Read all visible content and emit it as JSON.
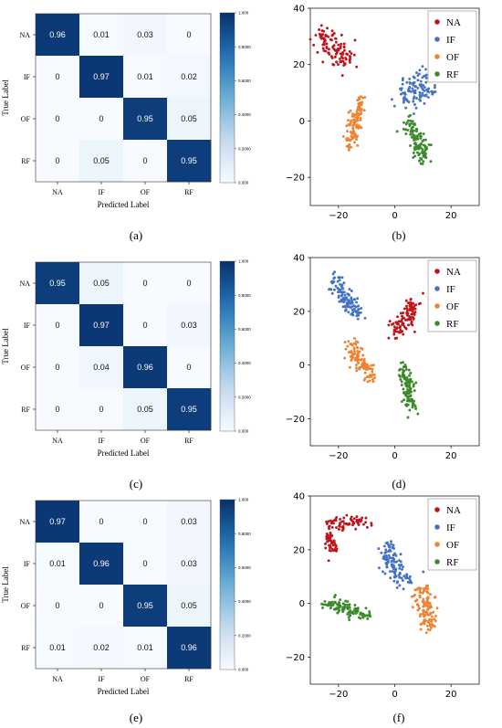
{
  "panels": [
    {
      "label": "(a)"
    },
    {
      "label": "(b)"
    },
    {
      "label": "(c)"
    },
    {
      "label": "(d)"
    },
    {
      "label": "(e)"
    },
    {
      "label": "(f)"
    }
  ],
  "colors": {
    "NA": "#c0141b",
    "IF": "#4472c4",
    "OF": "#ee8333",
    "RF": "#3c8a2c",
    "cmap_low": "#f7fbff",
    "cmap_high": "#08306b"
  },
  "chart_data": [
    {
      "type": "heatmap",
      "panel": "a",
      "xlabel": "Predicted Label",
      "ylabel": "True Label",
      "categories": [
        "NA",
        "IF",
        "OF",
        "RF"
      ],
      "matrix": [
        [
          0.96,
          0.01,
          0.03,
          0
        ],
        [
          0,
          0.97,
          0.01,
          0.02
        ],
        [
          0,
          0,
          0.95,
          0.05
        ],
        [
          0,
          0.05,
          0,
          0.95
        ]
      ],
      "colorbar_ticks": [
        "0.000",
        "0.2000",
        "0.4000",
        "0.6000",
        "0.8000",
        "1.000"
      ],
      "vmin": 0,
      "vmax": 1
    },
    {
      "type": "scatter",
      "panel": "b",
      "xlim": [
        -30,
        30
      ],
      "ylim": [
        -30,
        40
      ],
      "xticks": [
        -20,
        0,
        20
      ],
      "yticks": [
        -20,
        0,
        20,
        40
      ],
      "legend_position": "top-right",
      "series": [
        {
          "name": "NA",
          "clusters": [
            {
              "cx": -22,
              "cy": 26,
              "sx": 2.0,
              "sy": 2.2,
              "dx": 9,
              "dy": -9,
              "n": 110
            }
          ]
        },
        {
          "name": "IF",
          "clusters": [
            {
              "cx": 7.5,
              "cy": 11,
              "sx": 2.0,
              "sy": 2.8,
              "dx": 10,
              "dy": 4,
              "n": 110
            }
          ]
        },
        {
          "name": "OF",
          "clusters": [
            {
              "cx": -14,
              "cy": -0.5,
              "sx": 1.2,
              "sy": 1.8,
              "dx": 5,
              "dy": 14,
              "n": 110
            }
          ]
        },
        {
          "name": "RF",
          "clusters": [
            {
              "cx": 8,
              "cy": -7,
              "sx": 1.5,
              "sy": 2.0,
              "dx": 6,
              "dy": -13,
              "n": 110
            }
          ]
        }
      ]
    },
    {
      "type": "heatmap",
      "panel": "c",
      "xlabel": "Predicted Label",
      "ylabel": "True Label",
      "categories": [
        "NA",
        "IF",
        "OF",
        "RF"
      ],
      "matrix": [
        [
          0.95,
          0.05,
          0,
          0
        ],
        [
          0,
          0.97,
          0,
          0.03
        ],
        [
          0,
          0.04,
          0.96,
          0
        ],
        [
          0,
          0,
          0.05,
          0.95
        ]
      ],
      "colorbar_ticks": [
        "0.000",
        "0.2000",
        "0.4000",
        "0.6000",
        "0.8000",
        "1.000"
      ],
      "vmin": 0,
      "vmax": 1
    },
    {
      "type": "scatter",
      "panel": "d",
      "xlim": [
        -30,
        30
      ],
      "ylim": [
        -30,
        40
      ],
      "xticks": [
        -20,
        0,
        20
      ],
      "yticks": [
        -20,
        0,
        20,
        40
      ],
      "legend_position": "top-right",
      "series": [
        {
          "name": "NA",
          "clusters": [
            {
              "cx": 4,
              "cy": 18,
              "sx": 1.6,
              "sy": 2.0,
              "dx": 8,
              "dy": 12,
              "n": 110
            }
          ]
        },
        {
          "name": "IF",
          "clusters": [
            {
              "cx": -18,
              "cy": 26,
              "sx": 1.6,
              "sy": 2.0,
              "dx": 10,
              "dy": -12,
              "n": 110
            }
          ]
        },
        {
          "name": "OF",
          "clusters": [
            {
              "cx": -12,
              "cy": 1,
              "sx": 1.3,
              "sy": 2.0,
              "dx": 9,
              "dy": -12,
              "n": 110
            }
          ]
        },
        {
          "name": "RF",
          "clusters": [
            {
              "cx": 4.5,
              "cy": -8,
              "sx": 1.2,
              "sy": 2.0,
              "dx": 3,
              "dy": -14,
              "n": 110
            }
          ]
        }
      ]
    },
    {
      "type": "heatmap",
      "panel": "e",
      "xlabel": "Predicted Label",
      "ylabel": "True Label",
      "categories": [
        "NA",
        "IF",
        "OF",
        "RF"
      ],
      "matrix": [
        [
          0.97,
          0,
          0,
          0.03
        ],
        [
          0.01,
          0.96,
          0,
          0.03
        ],
        [
          0,
          0,
          0.95,
          0.05
        ],
        [
          0.01,
          0.02,
          0.01,
          0.96
        ]
      ],
      "colorbar_ticks": [
        "0.000",
        "0.2000",
        "0.4000",
        "0.6000",
        "0.8000",
        "1.000"
      ],
      "vmin": 0,
      "vmax": 1
    },
    {
      "type": "scatter",
      "panel": "f",
      "xlim": [
        -30,
        30
      ],
      "ylim": [
        -30,
        40
      ],
      "xticks": [
        -20,
        0,
        20
      ],
      "yticks": [
        -20,
        0,
        20,
        40
      ],
      "legend_position": "top-right",
      "series": [
        {
          "name": "NA",
          "clusters": [
            {
              "cx": -23,
              "cy": 24,
              "sx": 1.2,
              "sy": 2.2,
              "dx": 2,
              "dy": -8,
              "n": 50
            },
            {
              "cx": -16,
              "cy": 30,
              "sx": 2.5,
              "sy": 1.4,
              "dx": 9,
              "dy": 2,
              "n": 60
            }
          ]
        },
        {
          "name": "IF",
          "clusters": [
            {
              "cx": 0,
              "cy": 14,
              "sx": 1.8,
              "sy": 2.2,
              "dx": 7,
              "dy": -12,
              "n": 110
            }
          ]
        },
        {
          "name": "OF",
          "clusters": [
            {
              "cx": 11,
              "cy": -2,
              "sx": 1.8,
              "sy": 2.2,
              "dx": 3,
              "dy": -13,
              "n": 110
            }
          ]
        },
        {
          "name": "RF",
          "clusters": [
            {
              "cx": -17,
              "cy": -2,
              "sx": 2.0,
              "sy": 1.1,
              "dx": 14,
              "dy": -5,
              "n": 110
            }
          ]
        }
      ]
    }
  ]
}
